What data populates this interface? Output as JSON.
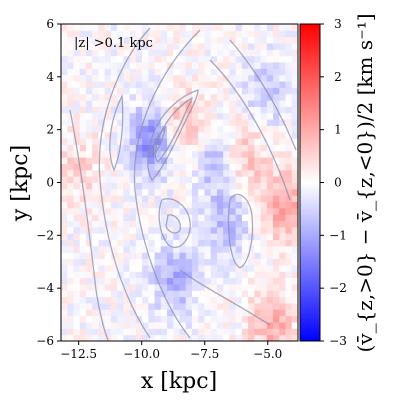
{
  "chart_data": {
    "type": "heatmap",
    "annotation": "|z| >0.1 kpc",
    "xlabel": "x [kpc]",
    "ylabel": "y [kpc]",
    "xlim": [
      -13.2,
      -3.8
    ],
    "ylim": [
      -6,
      6
    ],
    "x_ticks": [
      -12.5,
      -10.0,
      -7.5,
      -5.0
    ],
    "x_tick_labels": [
      "−12.5",
      "−10.0",
      "−7.5",
      "−5.0"
    ],
    "y_ticks": [
      -6,
      -4,
      -2,
      0,
      2,
      4,
      6
    ],
    "y_tick_labels": [
      "−6",
      "−4",
      "−2",
      "0",
      "2",
      "4",
      "6"
    ],
    "colorbar": {
      "label": "(v̄_{z,>0} − v̄_{z,<0})/2 [km s⁻¹]",
      "range": [
        -3,
        3
      ],
      "ticks": [
        -3,
        -2,
        -1,
        0,
        1,
        2,
        3
      ],
      "tick_labels": [
        "−3",
        "−2",
        "−1",
        "0",
        "1",
        "2",
        "3"
      ],
      "cmap": "bwr",
      "colors": {
        "low": "#0000ff",
        "mid": "#ffffff",
        "high": "#ff0000"
      }
    },
    "grid": false,
    "regions": [
      {
        "feature": "blue band along spiral arm",
        "x": -9.6,
        "y": 1.6,
        "value": -1.4
      },
      {
        "feature": "blue patch",
        "x": -8.7,
        "y": -3.6,
        "value": -1.0
      },
      {
        "feature": "blue patch",
        "x": -7.0,
        "y": 0.8,
        "value": -0.9
      },
      {
        "feature": "blue patch",
        "x": -6.6,
        "y": -1.6,
        "value": -0.8
      },
      {
        "feature": "blue patch",
        "x": -5.0,
        "y": 3.5,
        "value": -0.7
      },
      {
        "feature": "red band",
        "x": -8.3,
        "y": 2.3,
        "value": 0.9
      },
      {
        "feature": "red band",
        "x": -6.0,
        "y": 1.0,
        "value": 0.8
      },
      {
        "feature": "red band",
        "x": -4.4,
        "y": -0.8,
        "value": 1.1
      },
      {
        "feature": "red patch",
        "x": -4.8,
        "y": -5.3,
        "value": 1.0
      },
      {
        "feature": "red patch",
        "x": -12.5,
        "y": 0.5,
        "value": 0.5
      }
    ],
    "contour_color": "#8a8fa8"
  }
}
